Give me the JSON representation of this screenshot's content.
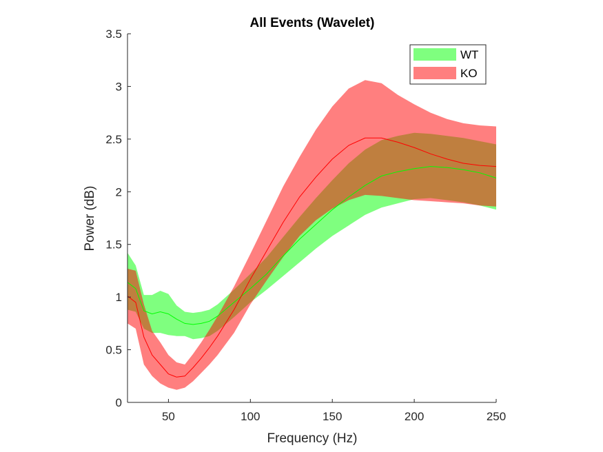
{
  "chart_data": {
    "type": "area",
    "title": "All Events (Wavelet)",
    "xlabel": "Frequency (Hz)",
    "ylabel": "Power (dB)",
    "xlim": [
      25,
      250
    ],
    "ylim": [
      0,
      3.5
    ],
    "xticks": [
      "50",
      "100",
      "150",
      "200",
      "250"
    ],
    "yticks": [
      "0",
      "0.5",
      "1",
      "1.5",
      "2",
      "2.5",
      "3",
      "3.5"
    ],
    "grid": false,
    "legend_position": "top-right",
    "x": [
      25,
      30,
      35,
      40,
      45,
      50,
      55,
      60,
      65,
      70,
      75,
      80,
      90,
      100,
      110,
      120,
      130,
      140,
      150,
      160,
      170,
      180,
      190,
      200,
      210,
      220,
      230,
      240,
      250
    ],
    "series": [
      {
        "name": "WT",
        "color": "#00ff00",
        "fill_opacity": 0.5,
        "mean": [
          1.14,
          1.08,
          0.87,
          0.84,
          0.86,
          0.84,
          0.79,
          0.75,
          0.74,
          0.75,
          0.77,
          0.82,
          0.95,
          1.08,
          1.22,
          1.39,
          1.55,
          1.69,
          1.83,
          1.95,
          2.06,
          2.15,
          2.19,
          2.22,
          2.24,
          2.23,
          2.21,
          2.18,
          2.13
        ],
        "upper": [
          1.42,
          1.3,
          1.02,
          1.02,
          1.06,
          1.03,
          0.92,
          0.86,
          0.85,
          0.86,
          0.88,
          0.93,
          1.07,
          1.22,
          1.38,
          1.57,
          1.76,
          1.94,
          2.11,
          2.27,
          2.4,
          2.49,
          2.53,
          2.56,
          2.55,
          2.53,
          2.51,
          2.48,
          2.45
        ],
        "lower": [
          0.88,
          0.86,
          0.7,
          0.66,
          0.66,
          0.64,
          0.63,
          0.63,
          0.6,
          0.61,
          0.63,
          0.68,
          0.81,
          0.95,
          1.07,
          1.2,
          1.33,
          1.46,
          1.58,
          1.68,
          1.78,
          1.85,
          1.89,
          1.93,
          1.94,
          1.92,
          1.9,
          1.87,
          1.83
        ]
      },
      {
        "name": "KO",
        "color": "#ff0000",
        "fill_opacity": 0.5,
        "mean": [
          1.01,
          0.95,
          0.62,
          0.45,
          0.36,
          0.27,
          0.24,
          0.25,
          0.33,
          0.42,
          0.52,
          0.63,
          0.88,
          1.17,
          1.44,
          1.71,
          1.95,
          2.14,
          2.31,
          2.44,
          2.51,
          2.51,
          2.47,
          2.42,
          2.36,
          2.31,
          2.27,
          2.25,
          2.24
        ],
        "upper": [
          1.27,
          1.25,
          0.93,
          0.68,
          0.57,
          0.45,
          0.38,
          0.36,
          0.46,
          0.57,
          0.69,
          0.82,
          1.1,
          1.41,
          1.73,
          2.05,
          2.33,
          2.59,
          2.81,
          2.98,
          3.06,
          3.03,
          2.92,
          2.83,
          2.75,
          2.69,
          2.65,
          2.63,
          2.62
        ],
        "lower": [
          0.75,
          0.7,
          0.36,
          0.25,
          0.18,
          0.14,
          0.12,
          0.14,
          0.2,
          0.28,
          0.36,
          0.45,
          0.66,
          0.93,
          1.16,
          1.38,
          1.58,
          1.73,
          1.84,
          1.92,
          1.97,
          1.96,
          1.94,
          1.92,
          1.91,
          1.9,
          1.89,
          1.87,
          1.86
        ]
      }
    ]
  }
}
